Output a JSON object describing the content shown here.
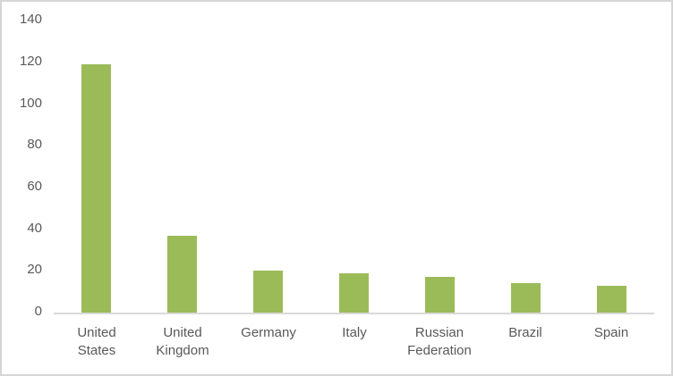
{
  "chart_data": {
    "type": "bar",
    "title": "",
    "xlabel": "",
    "ylabel": "",
    "categories": [
      "United States",
      "United Kingdom",
      "Germany",
      "Italy",
      "Russian Federation",
      "Brazil",
      "Spain"
    ],
    "values": [
      119,
      37,
      20,
      19,
      17,
      14,
      13
    ],
    "ylim": [
      0,
      140
    ],
    "yticks": [
      0,
      20,
      40,
      60,
      80,
      100,
      120,
      140
    ],
    "grid": false,
    "legend": false,
    "colors": {
      "bar": "#9BBB59",
      "axis_line": "#D9D9D9",
      "tick_text": "#595959",
      "chart_border": "#D5D5D5",
      "background": "#FFFFFF"
    }
  }
}
